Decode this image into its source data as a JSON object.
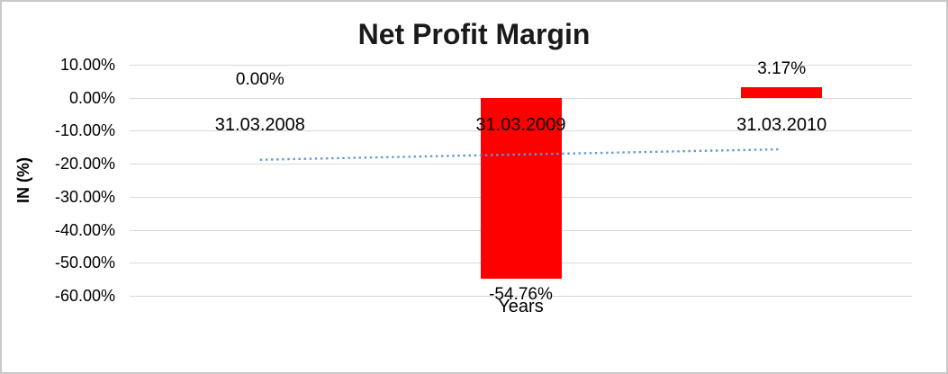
{
  "frame": {
    "background": "#FFFFFF",
    "border_color": "#C9C9C9"
  },
  "chart_data": {
    "type": "bar",
    "title": "Net Profit Margin",
    "xlabel": "Years",
    "ylabel": "IN (%)",
    "categories": [
      "31.03.2008",
      "31.03.2009",
      "31.03.2010"
    ],
    "series": [
      {
        "name": "Net Profit Margin",
        "values": [
          0,
          -54.76,
          3.17
        ]
      }
    ],
    "data_labels": [
      "0.00%",
      "-54.76%",
      "3.17%"
    ],
    "ytick_values": [
      10,
      0,
      -10,
      -20,
      -30,
      -40,
      -50,
      -60
    ],
    "ytick_labels": [
      "10.00%",
      "0.00%",
      "-10.00%",
      "-20.00%",
      "-30.00%",
      "-40.00%",
      "-50.00%",
      "-60.00%"
    ],
    "ylim": [
      -60,
      10
    ],
    "grid": true,
    "legend": "none",
    "bar_color": "#FF0000",
    "grid_color": "#D9D9D9",
    "text_color": "#000000",
    "trendline": {
      "type": "linear",
      "line_style": "dotted",
      "color": "#5B9BD5",
      "start_value": -18.78,
      "end_value": -15.61
    }
  }
}
